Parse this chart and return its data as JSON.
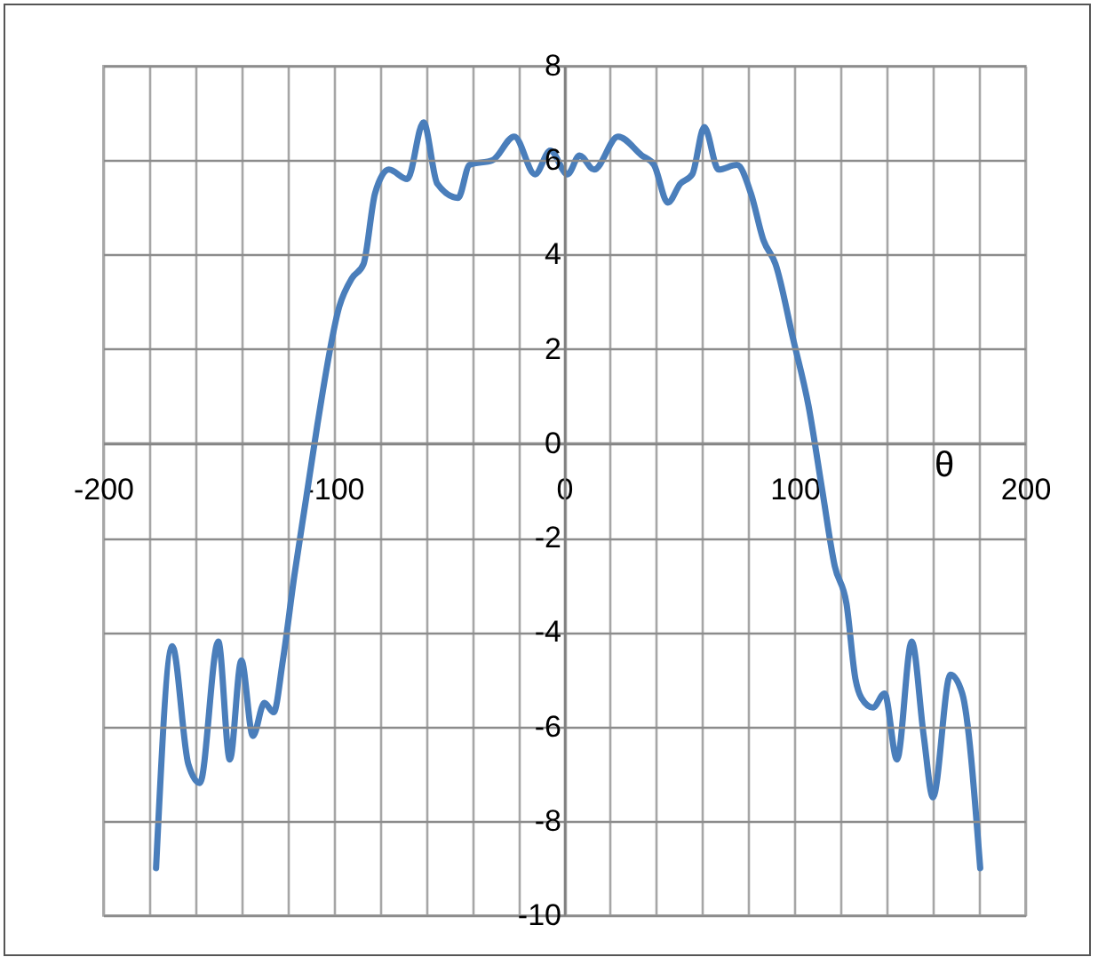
{
  "chart_data": {
    "type": "line",
    "xlabel": "θ",
    "grid": true,
    "marker": "none",
    "line_style": "solid",
    "xlim": [
      -200,
      200
    ],
    "ylim": [
      -10,
      8
    ],
    "xticks": [
      -200,
      {
        "value": -180,
        "label": null
      },
      {
        "value": -160,
        "label": null
      },
      {
        "value": -140,
        "label": null
      },
      {
        "value": -120,
        "label": null
      },
      -100,
      {
        "value": -80,
        "label": null
      },
      {
        "value": -60,
        "label": null
      },
      {
        "value": -40,
        "label": null
      },
      {
        "value": -20,
        "label": null
      },
      0,
      {
        "value": 20,
        "label": null
      },
      {
        "value": 40,
        "label": null
      },
      {
        "value": 60,
        "label": null
      },
      {
        "value": 80,
        "label": null
      },
      100,
      {
        "value": 120,
        "label": null
      },
      {
        "value": 140,
        "label": null
      },
      {
        "value": 160,
        "label": null
      },
      {
        "value": 180,
        "label": null
      },
      200
    ],
    "yticks": [
      -10,
      -8,
      -6,
      -4,
      -2,
      0,
      2,
      4,
      6,
      8
    ],
    "x": [
      -177,
      -170,
      -163,
      -158,
      -150,
      -145,
      -140,
      -135,
      -130,
      -126,
      -122,
      -117,
      -112,
      -107,
      -97.5,
      -92,
      -87,
      -82,
      -76,
      -68,
      -61,
      -55,
      -46,
      -41,
      -31,
      -21.6,
      -12.6,
      -6,
      1.5,
      6.7,
      13,
      23.4,
      33.7,
      39,
      45,
      50.4,
      55.6,
      60.8,
      67,
      75,
      81,
      86.5,
      91.7,
      99.4,
      106,
      112,
      117.4,
      122.5,
      126.4,
      129,
      134,
      139,
      144.4,
      150.8,
      156,
      160,
      167.6,
      172.7,
      180.5
    ],
    "series": [
      {
        "color": "#4a7ebb",
        "values": [
          -9.0,
          -4.3,
          -6.8,
          -7.2,
          -4.2,
          -6.7,
          -4.6,
          -6.2,
          -5.5,
          -5.7,
          -4.6,
          -2.8,
          -1.2,
          0.4,
          2.9,
          3.5,
          3.8,
          5.3,
          5.8,
          5.6,
          6.8,
          5.5,
          5.2,
          5.9,
          6.0,
          6.5,
          5.7,
          6.2,
          5.7,
          6.1,
          5.8,
          6.5,
          6.1,
          5.9,
          5.1,
          5.5,
          5.7,
          6.7,
          5.8,
          5.9,
          5.3,
          4.3,
          3.8,
          2.2,
          0.8,
          -1.0,
          -2.6,
          -3.4,
          -5.0,
          -5.4,
          -5.6,
          -5.3,
          -6.7,
          -4.2,
          -6.2,
          -7.5,
          -4.9,
          -5.3,
          -9.0
        ]
      }
    ]
  }
}
